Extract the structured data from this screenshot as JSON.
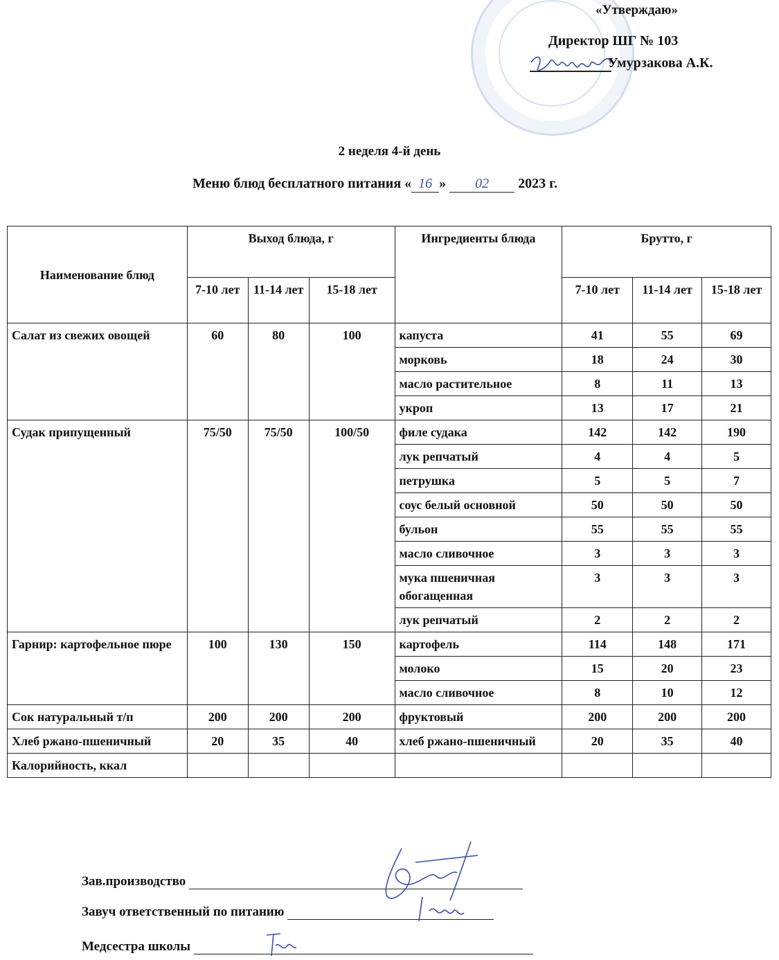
{
  "header": {
    "approve": "«Утверждаю»",
    "director_title": "Директор ШГ № 103",
    "director_name": "Умурзакова А.К."
  },
  "week_day": "2 неделя 4-й день",
  "menu_title": {
    "prefix": "Меню блюд бесплатного питания «",
    "day": "16",
    "mid": "»",
    "month": "02",
    "suffix": "2023 г."
  },
  "table": {
    "col_dish": "Наименование блюд",
    "col_yield": "Выход блюда, г",
    "col_ingredients": "Ингредиенты блюда",
    "col_gross": "Брутто, г",
    "ages": [
      "7-10 лет",
      "11-14 лет",
      "15-18 лет"
    ],
    "dishes": [
      {
        "name": "Салат из свежих овощей",
        "yield": [
          "60",
          "80",
          "100"
        ],
        "ingredients": [
          {
            "name": "капуста",
            "gross": [
              "41",
              "55",
              "69"
            ]
          },
          {
            "name": "морковь",
            "gross": [
              "18",
              "24",
              "30"
            ]
          },
          {
            "name": "масло растительное",
            "gross": [
              "8",
              "11",
              "13"
            ]
          },
          {
            "name": "укроп",
            "gross": [
              "13",
              "17",
              "21"
            ]
          }
        ]
      },
      {
        "name": "Судак припущенный",
        "yield": [
          "75/50",
          "75/50",
          "100/50"
        ],
        "ingredients": [
          {
            "name": "филе судака",
            "gross": [
              "142",
              "142",
              "190"
            ]
          },
          {
            "name": "лук репчатый",
            "gross": [
              "4",
              "4",
              "5"
            ]
          },
          {
            "name": "петрушка",
            "gross": [
              "5",
              "5",
              "7"
            ]
          },
          {
            "name": "соус белый основной",
            "gross": [
              "50",
              "50",
              "50"
            ]
          },
          {
            "name": "бульон",
            "gross": [
              "55",
              "55",
              "55"
            ]
          },
          {
            "name": "масло сливочное",
            "gross": [
              "3",
              "3",
              "3"
            ]
          },
          {
            "name": "мука пшеничная обогащенная",
            "gross": [
              "3",
              "3",
              "3"
            ]
          },
          {
            "name": "лук репчатый",
            "gross": [
              "2",
              "2",
              "2"
            ]
          }
        ]
      },
      {
        "name": "Гарнир: картофельное пюре",
        "yield": [
          "100",
          "130",
          "150"
        ],
        "ingredients": [
          {
            "name": "картофель",
            "gross": [
              "114",
              "148",
              "171"
            ]
          },
          {
            "name": "молоко",
            "gross": [
              "15",
              "20",
              "23"
            ]
          },
          {
            "name": "масло сливочное",
            "gross": [
              "8",
              "10",
              "12"
            ]
          }
        ]
      },
      {
        "name": "Сок натуральный т/п",
        "yield": [
          "200",
          "200",
          "200"
        ],
        "ingredients": [
          {
            "name": "фруктовый",
            "gross": [
              "200",
              "200",
              "200"
            ]
          }
        ]
      },
      {
        "name": "Хлеб ржано-пшеничный",
        "yield": [
          "20",
          "35",
          "40"
        ],
        "middle": true,
        "ingredients": [
          {
            "name": "хлеб ржано-пшеничный",
            "gross": [
              "20",
              "35",
              "40"
            ]
          }
        ]
      }
    ],
    "calories_label": "Калорийность, ккал"
  },
  "footer": {
    "production": "Зав.производство",
    "head_teacher": "Завуч ответственный по питанию",
    "nurse": "Медсестра школы"
  },
  "colors": {
    "ink": "#111111",
    "signature": "#3b4fa8",
    "stamp": "#8cafd7"
  }
}
